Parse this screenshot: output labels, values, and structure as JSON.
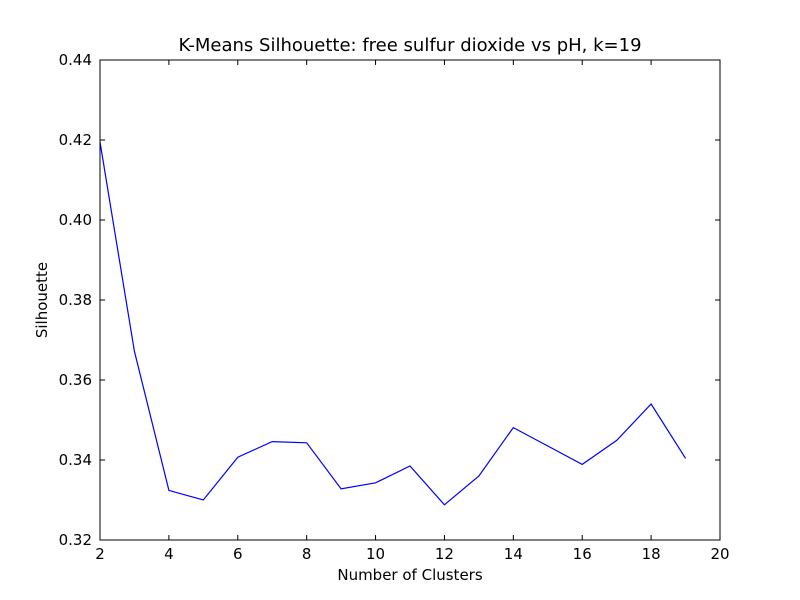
{
  "chart_data": {
    "type": "line",
    "title": "K-Means Silhouette: free sulfur dioxide vs pH, k=19",
    "xlabel": "Number of Clusters",
    "ylabel": "Silhouette",
    "xlim": [
      2,
      20
    ],
    "ylim": [
      0.32,
      0.44
    ],
    "x_ticks": [
      "2",
      "4",
      "6",
      "8",
      "10",
      "12",
      "14",
      "16",
      "18",
      "20"
    ],
    "y_ticks": [
      "0.32",
      "0.34",
      "0.36",
      "0.38",
      "0.40",
      "0.42",
      "0.44"
    ],
    "grid": false,
    "line_color": "#0000ff",
    "series": [
      {
        "x": [
          2,
          3,
          4,
          5,
          6,
          7,
          8,
          9,
          10,
          11,
          12,
          13,
          14,
          15,
          16,
          17,
          18,
          19
        ],
        "values": [
          0.4195,
          0.3672,
          0.3324,
          0.33,
          0.3407,
          0.3446,
          0.3443,
          0.3328,
          0.3343,
          0.3385,
          0.3288,
          0.336,
          0.3481,
          0.3435,
          0.3389,
          0.3449,
          0.354,
          0.3404
        ]
      }
    ]
  }
}
